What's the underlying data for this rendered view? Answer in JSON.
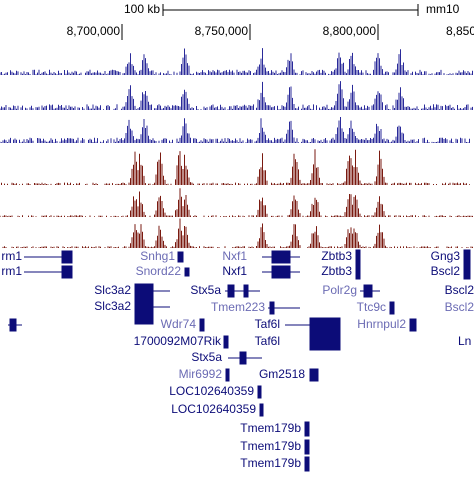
{
  "ruler": {
    "scale": "100 kb",
    "assembly": "mm10",
    "positions": [
      "8,700,000",
      "8,750,000",
      "8,800,000",
      "8,850"
    ]
  },
  "genes": [
    "rm1",
    "rm1",
    "Snhg1",
    "Snord22",
    "Nxf1",
    "Nxf1",
    "Zbtb3",
    "Zbtb3",
    "Gng3",
    "Bscl2",
    "Slc3a2",
    "Slc3a2",
    "Stx5a",
    "Tmem223",
    "Polr2g",
    "Ttc9c",
    "Bscl2",
    "Bscl2",
    "Wdr74",
    "Taf6l",
    "Hnrnpul2",
    "1700092M07Rik",
    "Taf6l",
    "Ln",
    "Stx5a",
    "Mir6992",
    "Gm2518",
    "LOC102640359",
    "LOC102640359",
    "Tmem179b",
    "Tmem179b",
    "Tmem179b"
  ]
}
